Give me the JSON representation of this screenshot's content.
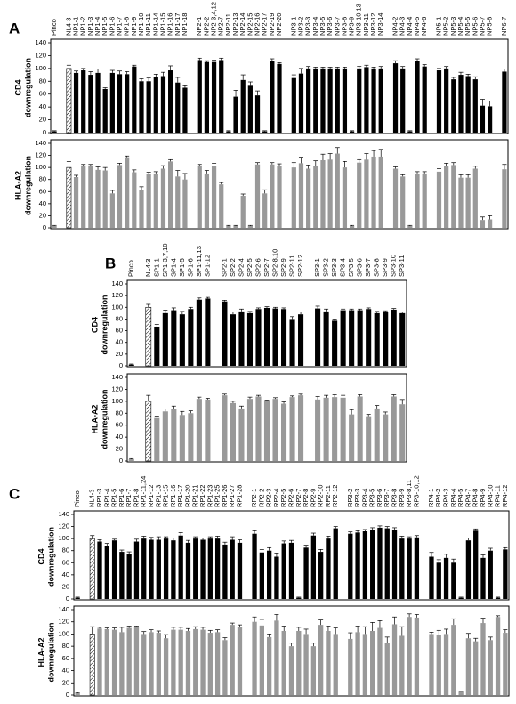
{
  "chart_data": [
    {
      "type": "bar",
      "panel": "A",
      "categories": [
        "Pinco",
        null,
        "NL4-3",
        "NP1-1",
        "NP1-2",
        "NP1-3",
        "NP1-4",
        "NP1-5",
        "NP1-6",
        "NP1-7",
        "NP1-8",
        "NP1-9",
        "NP1-10",
        "NP1-11",
        "NP1-14",
        "NP1-15",
        "NP1-16",
        "NP1-17",
        "NP1-18",
        null,
        "NP2-1",
        "NP2-2",
        "NP2-3,4,12",
        "NP2-7",
        "NP2-11",
        "NP2-13",
        "NP2-14",
        "NP2-15",
        "NP2-16",
        "NP2-17",
        "NP2-19",
        "NP2-20",
        null,
        "NP3-1",
        "NP3-2",
        "NP3-3",
        "NP3-4",
        "NP3-5",
        "NP3-6",
        "NP3-7",
        "NP3-8",
        "NP3-9",
        "NP3-10,13",
        "NP3-11",
        "NP3-12",
        "NP3-14",
        null,
        "NP4-2",
        "NP4-3",
        "NP4-4",
        "NP4-5",
        "NP4-6",
        null,
        "NP5-1",
        "NP5-2",
        "NP5-3",
        "NP5-4",
        "NP5-5",
        "NP5-6",
        "NP5-7",
        "NP5-8",
        null,
        "NP6-7"
      ],
      "ylabel": [
        "CD4",
        "downregulation"
      ],
      "values": [
        2,
        null,
        100,
        93,
        97,
        90,
        93,
        68,
        93,
        91,
        91,
        103,
        80,
        80,
        86,
        88,
        97,
        78,
        70,
        null,
        113,
        110,
        110,
        113,
        2,
        56,
        82,
        73,
        58,
        2,
        112,
        107,
        null,
        85,
        92,
        100,
        100,
        100,
        100,
        100,
        100,
        2,
        100,
        102,
        100,
        100,
        null,
        108,
        100,
        2,
        112,
        103,
        null,
        97,
        100,
        83,
        90,
        88,
        83,
        42,
        41,
        null,
        95
      ],
      "errors": [
        1,
        null,
        5,
        3,
        3,
        5,
        6,
        2,
        4,
        5,
        4,
        2,
        4,
        5,
        5,
        6,
        7,
        8,
        3,
        null,
        3,
        2,
        3,
        3,
        1,
        10,
        8,
        6,
        7,
        1,
        3,
        2,
        null,
        5,
        8,
        3,
        2,
        2,
        2,
        2,
        2,
        1,
        3,
        3,
        2,
        3,
        null,
        4,
        3,
        1,
        3,
        3,
        null,
        3,
        3,
        3,
        4,
        3,
        4,
        10,
        8,
        null,
        4
      ],
      "color": "#000000",
      "hatched": "NL4-3",
      "ylim": [
        0,
        140
      ],
      "yticks": [
        0,
        20,
        40,
        60,
        80,
        100,
        120,
        140
      ]
    },
    {
      "type": "bar",
      "ylabel": [
        "HLA-A2",
        "downregulation"
      ],
      "values": [
        3,
        null,
        100,
        84,
        103,
        102,
        96,
        95,
        57,
        104,
        117,
        92,
        62,
        89,
        90,
        98,
        110,
        85,
        80,
        null,
        102,
        90,
        102,
        72,
        3,
        3,
        53,
        3,
        105,
        57,
        105,
        102,
        null,
        100,
        107,
        98,
        103,
        112,
        113,
        123,
        100,
        3,
        108,
        113,
        118,
        118,
        null,
        98,
        85,
        3,
        90,
        90,
        null,
        93,
        102,
        104,
        83,
        83,
        98,
        13,
        14,
        null,
        97
      ],
      "errors": [
        1,
        null,
        10,
        3,
        2,
        3,
        5,
        5,
        5,
        3,
        2,
        4,
        6,
        3,
        3,
        5,
        3,
        10,
        10,
        null,
        3,
        5,
        5,
        3,
        1,
        1,
        3,
        1,
        3,
        6,
        3,
        4,
        null,
        8,
        10,
        6,
        8,
        10,
        10,
        10,
        10,
        1,
        5,
        10,
        10,
        12,
        null,
        3,
        3,
        1,
        3,
        3,
        null,
        5,
        5,
        4,
        5,
        5,
        4,
        5,
        6,
        null,
        8
      ],
      "color": "#999999",
      "hatched": "NL4-3",
      "ylim": [
        0,
        140
      ],
      "yticks": [
        0,
        20,
        40,
        60,
        80,
        100,
        120,
        140
      ]
    },
    {
      "type": "bar",
      "panel": "B",
      "categories": [
        "Pinco",
        null,
        "NL4-3",
        "SP1-1",
        "SP1-3,7,10",
        "SP1-4",
        "SP1-5",
        "SP1-6",
        "SP1-11,13",
        "SP1-12",
        null,
        "SP2-1",
        "SP2-2",
        "SP2-4",
        "SP2-5",
        "SP2-6",
        "SP2-7",
        "SP2-8,10",
        "SP2-9",
        "SP2-11",
        "SP2-12",
        null,
        "SP3-1",
        "SP3-2",
        "SP3-3",
        "SP3-4",
        "SP3-5",
        "SP3-6",
        "SP3-7",
        "SP3-8",
        "SP3-9",
        "SP3-10",
        "SP3-11"
      ],
      "ylabel": [
        "CD4",
        "downregulation"
      ],
      "values": [
        2,
        null,
        100,
        67,
        90,
        95,
        88,
        97,
        113,
        115,
        null,
        110,
        88,
        93,
        90,
        97,
        99,
        98,
        97,
        80,
        88,
        null,
        98,
        93,
        77,
        95,
        95,
        95,
        97,
        90,
        92,
        96,
        90
      ],
      "errors": [
        1,
        null,
        5,
        4,
        5,
        4,
        5,
        3,
        3,
        2,
        null,
        2,
        4,
        4,
        3,
        2,
        2,
        2,
        2,
        4,
        4,
        null,
        4,
        4,
        3,
        2,
        2,
        2,
        2,
        3,
        2,
        2,
        2
      ],
      "color": "#000000",
      "hatched": "NL4-3",
      "ylim": [
        0,
        140
      ],
      "yticks": [
        0,
        20,
        40,
        60,
        80,
        100,
        120,
        140
      ]
    },
    {
      "type": "bar",
      "ylabel": [
        "HLA-A2",
        "downregulation"
      ],
      "values": [
        3,
        null,
        100,
        72,
        83,
        87,
        77,
        80,
        104,
        103,
        null,
        110,
        97,
        88,
        104,
        108,
        100,
        104,
        96,
        107,
        110,
        null,
        103,
        106,
        107,
        106,
        78,
        108,
        75,
        88,
        78,
        108,
        95
      ],
      "errors": [
        1,
        null,
        10,
        3,
        4,
        5,
        6,
        4,
        3,
        2,
        null,
        2,
        3,
        4,
        3,
        2,
        2,
        2,
        3,
        2,
        2,
        null,
        5,
        4,
        4,
        4,
        8,
        3,
        3,
        5,
        4,
        3,
        8
      ],
      "color": "#999999",
      "hatched": "NL4-3",
      "ylim": [
        0,
        140
      ],
      "yticks": [
        0,
        20,
        40,
        60,
        80,
        100,
        120,
        140
      ]
    },
    {
      "type": "bar",
      "panel": "C",
      "categories": [
        "Pinco",
        null,
        "NL4-3",
        "RP1-3",
        "RP1-4",
        "RP1-5",
        "RP1-6",
        "RP1-7",
        "RP1-8",
        "RP1-11,24",
        "RP1-12",
        "RP1-13",
        "RP1-15",
        "RP1-16",
        "RP1-17",
        "RP1-20",
        "RP1-21",
        "RP1-22",
        "RP1-23",
        "RP1-25",
        "RP1-26",
        "RP1-27",
        "RP1-28",
        null,
        "RP2-1",
        "RP2-2",
        "RP2-3",
        "RP2-4",
        "RP2-5",
        "RP2-6",
        "RP2-7",
        "RP2-8",
        "RP2-9",
        "RP2-10",
        "RP2-11",
        "RP2-12",
        null,
        "RP3-2",
        "RP3-3",
        "RP3-4",
        "RP3-5",
        "RP3-6",
        "RP3-7",
        "RP3-8",
        "RP3-9",
        "RP3-8,11",
        "RP3-10,12",
        null,
        "RP4-1",
        "RP4-2",
        "RP4-3",
        "RP4-4",
        "RP4-5",
        "RP4-7",
        "RP4-8",
        "RP4-9",
        "RP4-10",
        "RP4-11",
        "RP4-12"
      ],
      "ylabel": [
        "CD4",
        "downregulation"
      ],
      "values": [
        2,
        null,
        100,
        95,
        88,
        97,
        78,
        75,
        95,
        100,
        98,
        98,
        100,
        97,
        105,
        93,
        100,
        98,
        100,
        100,
        90,
        98,
        93,
        null,
        108,
        77,
        80,
        70,
        92,
        93,
        2,
        85,
        105,
        78,
        100,
        117,
        null,
        108,
        110,
        112,
        115,
        118,
        117,
        115,
        100,
        100,
        102,
        null,
        70,
        60,
        68,
        60,
        2,
        97,
        113,
        68,
        80,
        2,
        82
      ],
      "errors": [
        1,
        null,
        5,
        3,
        4,
        2,
        3,
        3,
        4,
        4,
        4,
        5,
        3,
        4,
        5,
        4,
        3,
        3,
        3,
        4,
        4,
        5,
        5,
        null,
        5,
        5,
        5,
        6,
        4,
        4,
        1,
        4,
        4,
        4,
        4,
        3,
        null,
        3,
        3,
        3,
        3,
        3,
        3,
        3,
        4,
        3,
        3,
        null,
        7,
        5,
        6,
        6,
        1,
        4,
        3,
        5,
        4,
        1,
        3
      ],
      "color": "#000000",
      "hatched": "NL4-3",
      "ylim": [
        0,
        140
      ],
      "yticks": [
        0,
        20,
        40,
        60,
        80,
        100,
        120,
        140
      ]
    },
    {
      "type": "bar",
      "ylabel": [
        "HLA-A2",
        "downregulation"
      ],
      "values": [
        3,
        null,
        100,
        109,
        108,
        107,
        103,
        110,
        111,
        100,
        103,
        102,
        93,
        107,
        107,
        105,
        108,
        107,
        102,
        103,
        90,
        115,
        112,
        null,
        120,
        114,
        95,
        122,
        105,
        80,
        105,
        100,
        80,
        115,
        105,
        100,
        null,
        92,
        103,
        100,
        105,
        110,
        85,
        116,
        97,
        128,
        127,
        null,
        100,
        98,
        100,
        115,
        5,
        93,
        88,
        118,
        90,
        128,
        102
      ],
      "errors": [
        1,
        null,
        12,
        2,
        2,
        3,
        8,
        3,
        2,
        4,
        4,
        3,
        6,
        4,
        4,
        4,
        4,
        4,
        4,
        4,
        4,
        3,
        3,
        null,
        8,
        10,
        5,
        10,
        8,
        5,
        6,
        8,
        5,
        8,
        8,
        10,
        null,
        10,
        10,
        12,
        14,
        12,
        10,
        12,
        15,
        5,
        5,
        null,
        3,
        8,
        8,
        10,
        1,
        8,
        5,
        8,
        5,
        2,
        5
      ],
      "color": "#999999",
      "hatched": "NL4-3",
      "ylim": [
        0,
        140
      ],
      "yticks": [
        0,
        20,
        40,
        60,
        80,
        100,
        120,
        140
      ]
    }
  ]
}
